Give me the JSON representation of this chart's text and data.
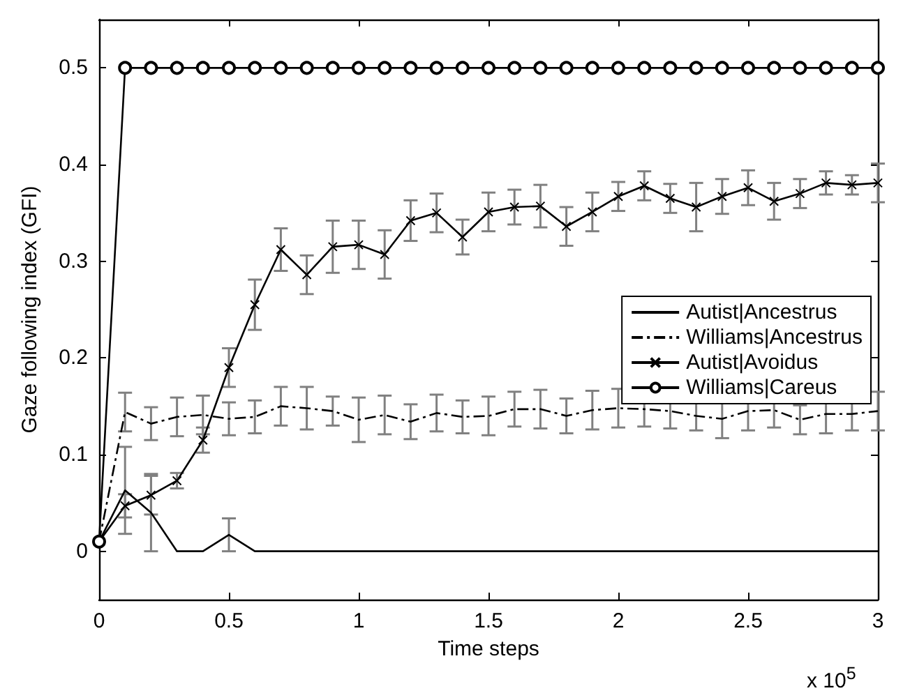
{
  "chart_data": {
    "type": "line",
    "xlabel": "Time steps",
    "ylabel": "Gaze following index (GFI)",
    "annotations": [
      "x 10$^{5}$"
    ],
    "x": [
      0,
      0.1,
      0.2,
      0.3,
      0.4,
      0.5,
      0.6,
      0.7,
      0.8,
      0.9,
      1,
      1.1,
      1.2,
      1.3,
      1.4,
      1.5,
      1.6,
      1.7,
      1.8,
      1.9,
      2,
      2.1,
      2.2,
      2.3,
      2.4,
      2.5,
      2.6,
      2.7,
      2.8,
      2.9,
      3
    ],
    "xlim": [
      0,
      3
    ],
    "xticks": [
      0,
      0.5,
      1,
      1.5,
      2,
      2.5,
      3
    ],
    "ylim": [
      -0.05,
      0.55
    ],
    "yticks": [
      0,
      0.1,
      0.2,
      0.3,
      0.4,
      0.5
    ],
    "grid": false,
    "legend": "right",
    "series": [
      {
        "name": "Autist|Ancestrus",
        "color": "#000000",
        "marker": "none",
        "line_style": "solid",
        "values": [
          0.01,
          0.063,
          0.04,
          0,
          0,
          0.017,
          0,
          0,
          0,
          0,
          0,
          0,
          0,
          0,
          0,
          0,
          0,
          0,
          0,
          0,
          0,
          0,
          0,
          0,
          0,
          0,
          0,
          0,
          0,
          0,
          0
        ],
        "errors": [
          null,
          0.045,
          0.04,
          null,
          null,
          0.017,
          null,
          null,
          null,
          null,
          null,
          null,
          null,
          null,
          null,
          null,
          null,
          null,
          null,
          null,
          null,
          null,
          null,
          null,
          null,
          null,
          null,
          null,
          null,
          null,
          null
        ]
      },
      {
        "name": "Williams|Ancestrus",
        "color": "#000000",
        "marker": "none",
        "line_style": "dashdot",
        "values": [
          0.01,
          0.144,
          0.132,
          0.139,
          0.141,
          0.137,
          0.139,
          0.15,
          0.148,
          0.145,
          0.136,
          0.141,
          0.134,
          0.143,
          0.139,
          0.14,
          0.147,
          0.147,
          0.14,
          0.146,
          0.148,
          0.147,
          0.145,
          0.14,
          0.137,
          0.145,
          0.146,
          0.136,
          0.142,
          0.142,
          0.145
        ],
        "errors": [
          null,
          0.02,
          0.017,
          0.02,
          0.02,
          0.017,
          0.017,
          0.02,
          0.022,
          0.015,
          0.023,
          0.02,
          0.018,
          0.019,
          0.017,
          0.02,
          0.018,
          0.02,
          0.018,
          0.02,
          0.02,
          0.018,
          0.018,
          0.015,
          0.02,
          0.02,
          0.018,
          0.015,
          0.02,
          0.017,
          0.02
        ]
      },
      {
        "name": "Autist|Avoidus",
        "color": "#000000",
        "marker": "cross",
        "line_style": "solid",
        "values": [
          0.01,
          0.047,
          0.058,
          0.073,
          0.115,
          0.19,
          0.255,
          0.312,
          0.286,
          0.315,
          0.317,
          0.307,
          0.342,
          0.35,
          0.325,
          0.351,
          0.356,
          0.357,
          0.336,
          0.351,
          0.367,
          0.378,
          0.365,
          0.356,
          0.367,
          0.376,
          0.362,
          0.37,
          0.381,
          0.379,
          0.381
        ],
        "errors": [
          null,
          0.012,
          0.02,
          0.008,
          0.013,
          0.02,
          0.026,
          0.022,
          0.02,
          0.027,
          0.025,
          0.025,
          0.021,
          0.02,
          0.018,
          0.02,
          0.018,
          0.022,
          0.02,
          0.02,
          0.015,
          0.015,
          0.015,
          0.025,
          0.018,
          0.018,
          0.019,
          0.015,
          0.012,
          0.01,
          0.02
        ]
      },
      {
        "name": "Williams|Careus",
        "color": "#000000",
        "marker": "circle",
        "line_style": "solid",
        "values": [
          0.01,
          0.5,
          0.5,
          0.5,
          0.5,
          0.5,
          0.5,
          0.5,
          0.5,
          0.5,
          0.5,
          0.5,
          0.5,
          0.5,
          0.5,
          0.5,
          0.5,
          0.5,
          0.5,
          0.5,
          0.5,
          0.5,
          0.5,
          0.5,
          0.5,
          0.5,
          0.5,
          0.5,
          0.5,
          0.5,
          0.5
        ]
      }
    ]
  }
}
